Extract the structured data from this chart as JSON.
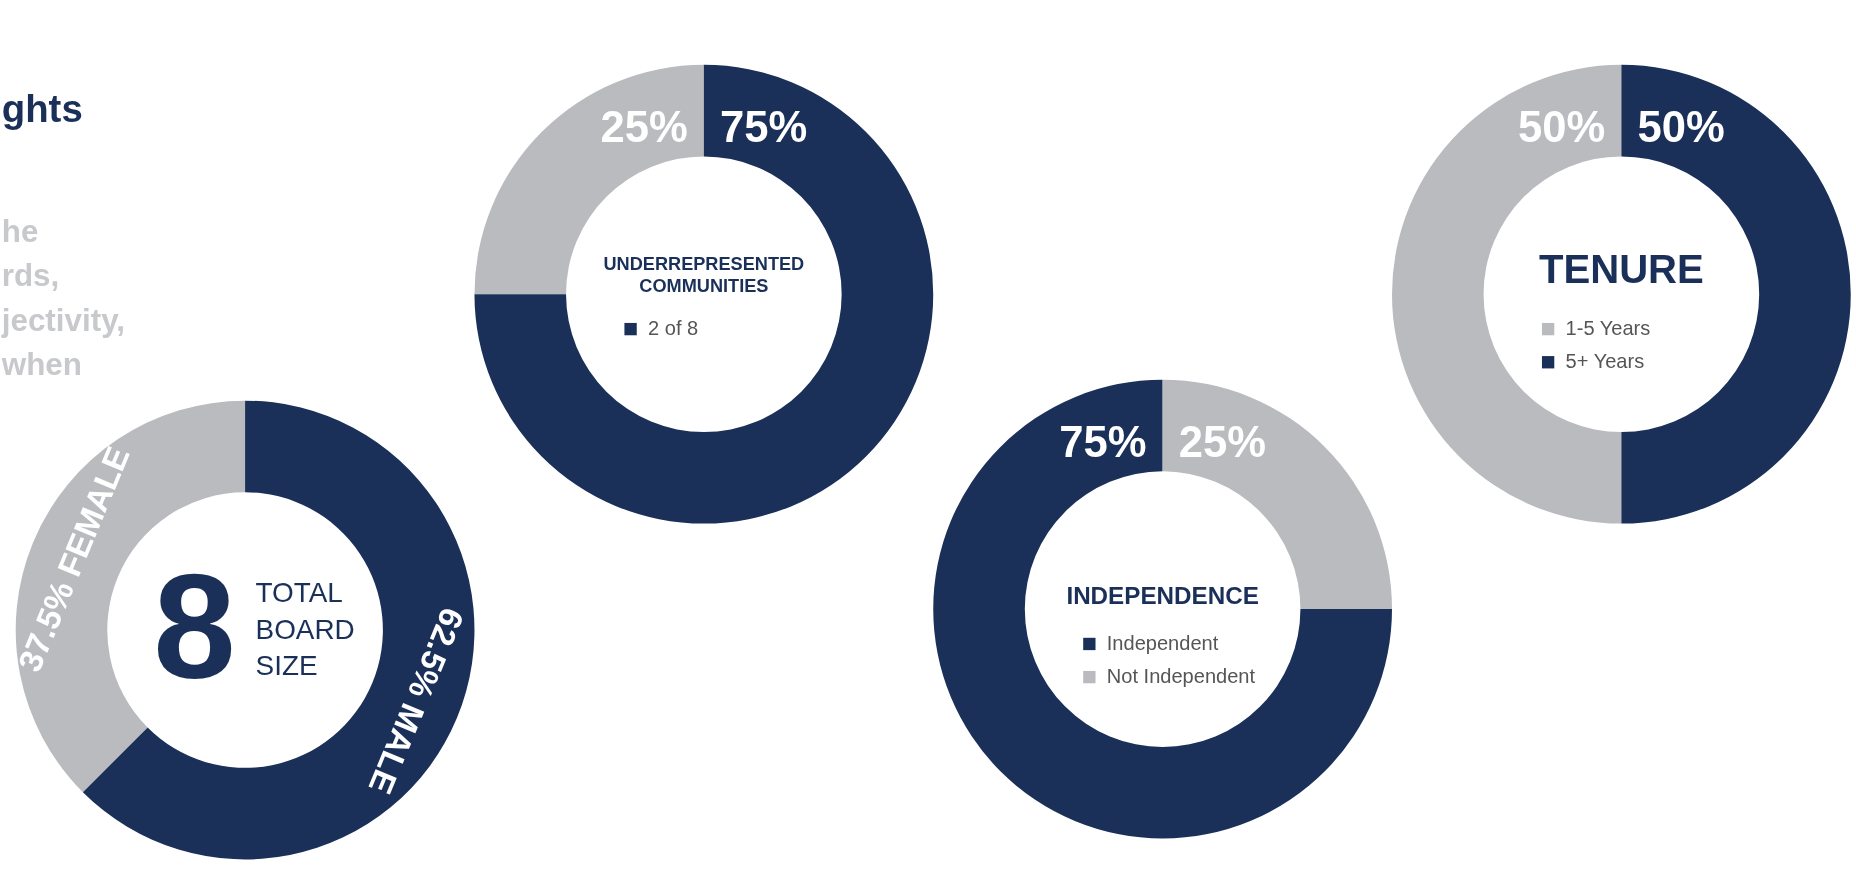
{
  "chart_data": [
    {
      "type": "other",
      "title": "ghts",
      "annotations": [
        "he",
        "rds,",
        "jectivity,",
        "when"
      ]
    },
    {
      "type": "donut",
      "title": "TOTAL BOARD SIZE",
      "annotations": [
        "8"
      ],
      "categories": [
        "FEMALE",
        "MALE"
      ],
      "values": [
        37.5,
        62.5
      ],
      "colors": [
        "#babbbf",
        "#1a3059"
      ],
      "value_labels": [
        "37.5%",
        "62.5%"
      ],
      "legend": false
    },
    {
      "type": "donut",
      "title": "UNDERREPRESENTED COMMUNITIES",
      "categories": [
        null,
        "2 of 8"
      ],
      "values": [
        25,
        75
      ],
      "colors": [
        "#babbbf",
        "#1a3059"
      ],
      "value_labels": [
        "25%",
        "75%"
      ],
      "legend": "center"
    },
    {
      "type": "donut",
      "title": "INDEPENDENCE",
      "categories": [
        "Independent",
        "Not Independent"
      ],
      "values": [
        75,
        25
      ],
      "colors": [
        "#1a3059",
        "#babbbf"
      ],
      "value_labels": [
        "75%",
        "25%"
      ],
      "legend": "center"
    },
    {
      "type": "donut",
      "title": "TENURE",
      "categories": [
        "1-5 Years",
        "5+ Years"
      ],
      "values": [
        50,
        50
      ],
      "colors": [
        "#babbbf",
        "#1a3059"
      ],
      "value_labels": [
        "50%",
        "50%"
      ],
      "legend": "center"
    }
  ]
}
